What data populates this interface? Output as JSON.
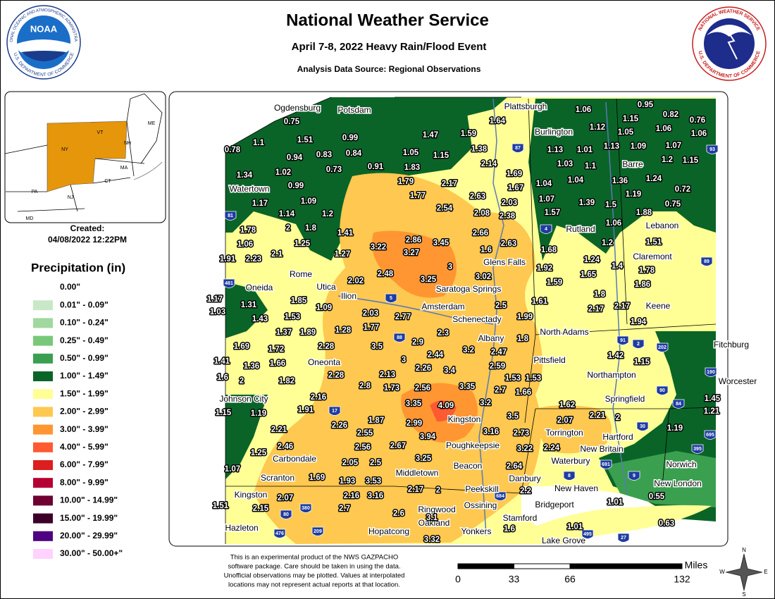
{
  "header": {
    "title": "National Weather Service",
    "subtitle": "April 7-8, 2022 Heavy Rain/Flood Event",
    "source": "Analysis Data Source: Regional Observations"
  },
  "logos": {
    "noaa": "NOAA",
    "noaa_top": "NATIONAL OCEANIC AND ATMOSPHERIC ADMINISTRATION",
    "noaa_bottom": "U.S. DEPARTMENT OF COMMERCE",
    "nws_top": "NATIONAL WEATHER SERVICE",
    "nws_bottom": "U.S. DEPARTMENT OF COMMERCE"
  },
  "inset": {
    "states": [
      "ME",
      "VT",
      "NH",
      "NY",
      "MA",
      "CT",
      "PA",
      "NJ",
      "MD"
    ]
  },
  "created": {
    "label": "Created:",
    "date": "04/08/2022 12:22PM"
  },
  "legend": {
    "title": "Precipitation (in)",
    "items": [
      {
        "label": "0.00\"",
        "color": "#ffffff"
      },
      {
        "label": "0.01\" - 0.09\"",
        "color": "#c8e8c8"
      },
      {
        "label": "0.10\" - 0.24\"",
        "color": "#a0d8a0"
      },
      {
        "label": "0.25\" - 0.49\"",
        "color": "#78c878"
      },
      {
        "label": "0.50\" - 0.99\"",
        "color": "#3aa050"
      },
      {
        "label": "1.00\" - 1.49\"",
        "color": "#0a6428"
      },
      {
        "label": "1.50\" - 1.99\"",
        "color": "#ffff96"
      },
      {
        "label": "2.00\" - 2.99\"",
        "color": "#ffc850"
      },
      {
        "label": "3.00\" - 3.99\"",
        "color": "#ff9632"
      },
      {
        "label": "4.00\" - 5.99\"",
        "color": "#ff5a32"
      },
      {
        "label": "6.00\" - 7.99\"",
        "color": "#dc1e1e"
      },
      {
        "label": "8.00\" - 9.99\"",
        "color": "#b40032"
      },
      {
        "label": "10.00\" - 14.99\"",
        "color": "#6e0032"
      },
      {
        "label": "15.00\" - 19.99\"",
        "color": "#3c0028"
      },
      {
        "label": "20.00\" - 29.99\"",
        "color": "#500082"
      },
      {
        "label": "30.00\" - 50.00+\"",
        "color": "#ffd2ff"
      }
    ]
  },
  "cities": [
    "Ogdensburg",
    "Potsdam",
    "Plattsburgh",
    "Burlington",
    "Watertown",
    "Barre",
    "Rutland",
    "Lebanon",
    "Claremont",
    "Glens Falls",
    "Rome",
    "Oneida",
    "Utica",
    "Ilion",
    "Saratoga Springs",
    "Amsterdam",
    "Schenectady",
    "Keene",
    "North Adams",
    "Albany",
    "Fitchburg",
    "Pittsfield",
    "Oneonta",
    "Northampton",
    "Worcester",
    "Johnson City",
    "Springfield",
    "Kingston",
    "Torrington",
    "Hartford",
    "Poughkeepsie",
    "New Britain",
    "Carbondale",
    "Waterbury",
    "Norwich",
    "Beacon",
    "Middletown",
    "Danbury",
    "Scranton",
    "New London",
    "New Haven",
    "Peekskill",
    "Kingston",
    "Bridgeport",
    "Ossining",
    "Ringwood",
    "Stamford",
    "Oakland",
    "Hazleton",
    "Hopatcong",
    "Yonkers",
    "Lake Grove"
  ],
  "highways": [
    87,
    93,
    81,
    4,
    89,
    481,
    5,
    88,
    91,
    2,
    202,
    190,
    90,
    84,
    17,
    30,
    395,
    695,
    691,
    9,
    8,
    684,
    380,
    80,
    476,
    209,
    495,
    27
  ],
  "observations": [
    0.75,
    1.1,
    0.78,
    1.51,
    0.99,
    0.94,
    0.83,
    0.84,
    1.34,
    1.02,
    0.73,
    0.91,
    0.99,
    1.09,
    1.17,
    1.14,
    1.2,
    2,
    1.8,
    1.78,
    1.06,
    1.25,
    1.41,
    1.91,
    2.23,
    2.1,
    1.27,
    3.22,
    2.86,
    3.45,
    3.27,
    3,
    2.48,
    3.25,
    2.02,
    1.17,
    1.03,
    1.31,
    1.85,
    1.09,
    1.43,
    1.53,
    2.03,
    2.77,
    1.37,
    1.89,
    1.28,
    1.77,
    1.69,
    1.72,
    2.28,
    3.5,
    2.9,
    2.3,
    1.41,
    1.36,
    1.66,
    3,
    2.44,
    3.2,
    2.47,
    1.8,
    1.6,
    2,
    1.82,
    2.28,
    2.13,
    2.26,
    3.4,
    2.59,
    2.8,
    1.73,
    2.56,
    3.35,
    2.7,
    1.66,
    1.53,
    1.53,
    2.16,
    1.15,
    1.19,
    1.91,
    3.35,
    4.09,
    3.2,
    3.5,
    2.26,
    1.87,
    2.99,
    3.16,
    2.73,
    2.21,
    2.55,
    3.94,
    2.46,
    1.25,
    2.56,
    2.67,
    3.22,
    2.24,
    3.25,
    2.05,
    2.5,
    2.64,
    1.07,
    1.69,
    1.93,
    3.53,
    2.17,
    2,
    2.2,
    2.07,
    2.16,
    3.16,
    1.51,
    2.15,
    2.7,
    2.6,
    3.1,
    1.6,
    3.32,
    1.47,
    1.59,
    1.64,
    1.05,
    1.15,
    1.38,
    2.14,
    1.83,
    1.79,
    2.17,
    1.77,
    2.63,
    1.69,
    1.67,
    2.54,
    2.08,
    2.03,
    2.38,
    2.66,
    1.6,
    2.63,
    3.02,
    2.5,
    1.61,
    1.99,
    1.06,
    0.95,
    1.15,
    0.82,
    0.76,
    1.12,
    1.05,
    1.06,
    1.06,
    1.13,
    1.01,
    1.13,
    1.09,
    1.07,
    1.2,
    1.15,
    1.03,
    1.1,
    1.04,
    1.04,
    1.36,
    1.24,
    0.72,
    1.19,
    1.07,
    1.39,
    1.5,
    0.75,
    1.57,
    1.88,
    1.06,
    1.2,
    1.51,
    1.68,
    1.24,
    1.4,
    1.92,
    1.65,
    1.78,
    1.59,
    1.86,
    1.8,
    2.17,
    2.17,
    1.94,
    1.42,
    1.15,
    1.62,
    2.07,
    2.21,
    2,
    1.45,
    1.21,
    1.19,
    1.01,
    0.55,
    0.63,
    1.01
  ],
  "disclaimer": [
    "This is an experimental product of the NWS GAZPACHO",
    "software package. Care should be taken in using the data.",
    "Unofficial observations may be plotted. Values at interpolated",
    "locations may not represent actual reports at that location."
  ],
  "scale": {
    "label": "Miles",
    "ticks": [
      0,
      33,
      66,
      132
    ]
  },
  "compass": {
    "n": "N",
    "e": "E",
    "s": "S",
    "w": "W"
  }
}
